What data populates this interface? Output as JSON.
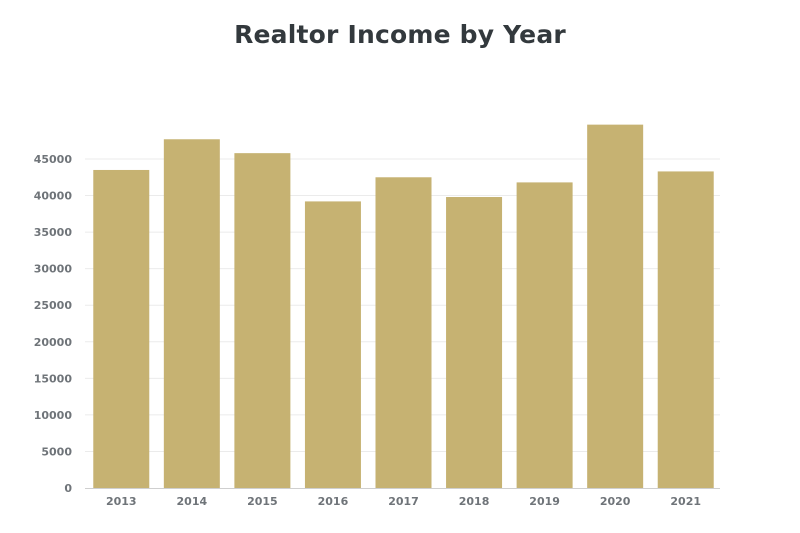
{
  "chart_data": {
    "type": "bar",
    "title": "Realtor Income by Year",
    "xlabel": "",
    "ylabel": "",
    "categories": [
      "2013",
      "2014",
      "2015",
      "2016",
      "2017",
      "2018",
      "2019",
      "2020",
      "2021"
    ],
    "values": [
      43500,
      47700,
      45800,
      39200,
      42500,
      39800,
      41800,
      49700,
      43300
    ],
    "ylim": [
      0,
      50000
    ],
    "yticks": [
      "0",
      "5000",
      "10000",
      "15000",
      "20000",
      "25000",
      "30000",
      "35000",
      "40000",
      "45000"
    ],
    "grid": true,
    "legend": "none",
    "bar_color": "#c6b272"
  }
}
